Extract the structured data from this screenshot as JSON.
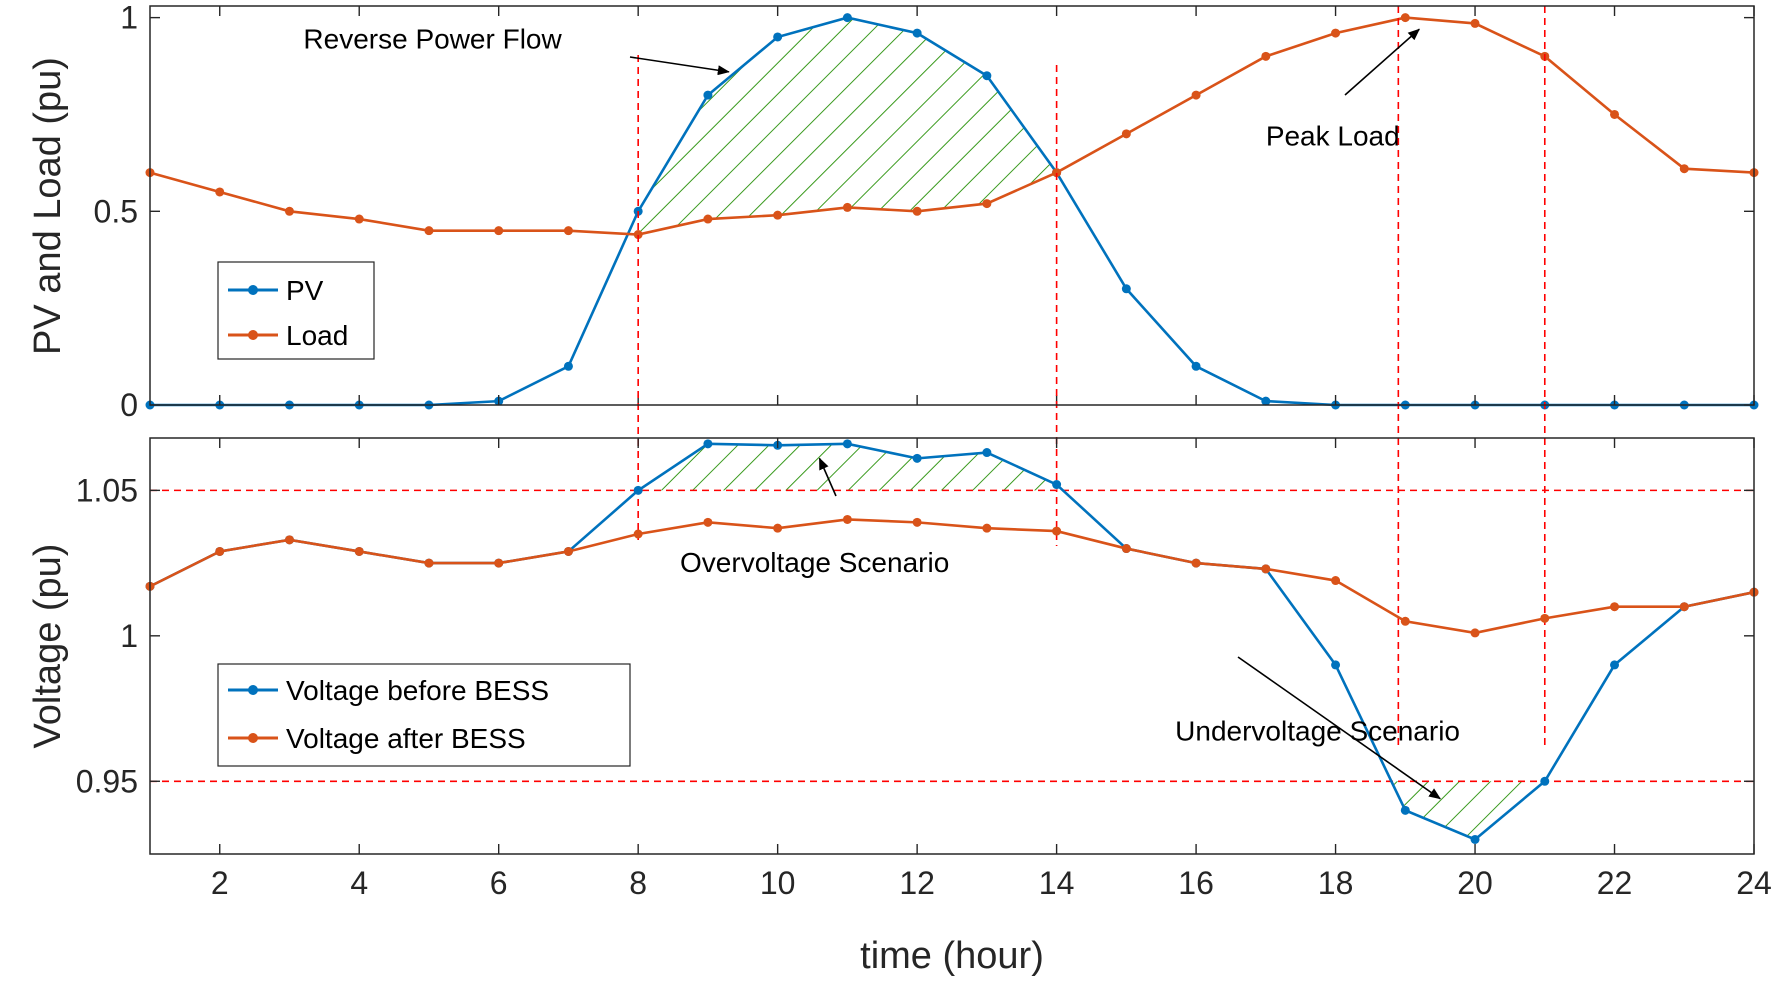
{
  "chart_data": [
    {
      "type": "line",
      "ylabel": "PV and Load (pu)",
      "xlim": [
        1,
        24
      ],
      "ylim": [
        0,
        1.03
      ],
      "yticks": [
        0,
        0.5,
        1
      ],
      "ytick_labels": [
        "0",
        "0.5",
        "1"
      ],
      "grid": false,
      "legend": "center-left",
      "x": [
        1,
        2,
        3,
        4,
        5,
        6,
        7,
        8,
        9,
        10,
        11,
        12,
        13,
        14,
        15,
        16,
        17,
        18,
        19,
        20,
        21,
        22,
        23,
        24
      ],
      "series": [
        {
          "name": "PV",
          "color": "#0072BD",
          "values": [
            0,
            0,
            0,
            0,
            0,
            0.01,
            0.1,
            0.5,
            0.8,
            0.95,
            1.0,
            0.96,
            0.85,
            0.6,
            0.3,
            0.1,
            0.01,
            0,
            0,
            0,
            0,
            0,
            0,
            0
          ]
        },
        {
          "name": "Load",
          "color": "#D95319",
          "values": [
            0.6,
            0.55,
            0.5,
            0.48,
            0.45,
            0.45,
            0.45,
            0.44,
            0.48,
            0.49,
            0.51,
            0.5,
            0.52,
            0.6,
            0.7,
            0.8,
            0.9,
            0.96,
            1.0,
            0.985,
            0.9,
            0.75,
            0.61,
            0.6
          ]
        }
      ],
      "vlines": [
        8,
        14,
        19,
        21
      ],
      "annotations": [
        {
          "text": "Reverse Power Flow",
          "x": 3.2,
          "y": 0.92,
          "arrow_to": [
            9.3,
            0.86
          ]
        },
        {
          "text": "Peak Load",
          "x": 17.0,
          "y": 0.67,
          "arrow_to": [
            19.2,
            0.97
          ]
        }
      ],
      "legend_labels": [
        "PV",
        "Load"
      ]
    },
    {
      "type": "line",
      "ylabel": "Voltage (pu)",
      "xlabel": "time (hour)",
      "xlim": [
        1,
        24
      ],
      "ylim": [
        0.925,
        1.068
      ],
      "xticks": [
        2,
        4,
        6,
        8,
        10,
        12,
        14,
        16,
        18,
        20,
        22,
        24
      ],
      "xtick_labels": [
        "2",
        "4",
        "6",
        "8",
        "10",
        "12",
        "14",
        "16",
        "18",
        "20",
        "22",
        "24"
      ],
      "yticks": [
        0.95,
        1,
        1.05
      ],
      "ytick_labels": [
        "0.95",
        "1",
        "1.05"
      ],
      "grid": false,
      "legend": "bottom-left",
      "x": [
        1,
        2,
        3,
        4,
        5,
        6,
        7,
        8,
        9,
        10,
        11,
        12,
        13,
        14,
        15,
        16,
        17,
        18,
        19,
        20,
        21,
        22,
        23,
        24
      ],
      "series": [
        {
          "name": "Voltage before BESS",
          "color": "#0072BD",
          "values": [
            1.017,
            1.029,
            1.033,
            1.029,
            1.025,
            1.025,
            1.029,
            1.05,
            1.066,
            1.0655,
            1.066,
            1.061,
            1.063,
            1.052,
            1.03,
            1.025,
            1.023,
            0.99,
            0.94,
            0.93,
            0.95,
            0.99,
            1.01,
            1.015
          ]
        },
        {
          "name": "Voltage after BESS",
          "color": "#D95319",
          "values": [
            1.017,
            1.029,
            1.033,
            1.029,
            1.025,
            1.025,
            1.029,
            1.035,
            1.039,
            1.037,
            1.04,
            1.039,
            1.037,
            1.036,
            1.03,
            1.025,
            1.023,
            1.019,
            1.005,
            1.001,
            1.006,
            1.01,
            1.01,
            1.015
          ]
        }
      ],
      "hlines": [
        0.95,
        1.05
      ],
      "annotations": [
        {
          "text": "Overvoltage Scenario",
          "x": 8.6,
          "y": 1.022,
          "arrow_to": [
            10.6,
            1.061
          ]
        },
        {
          "text": "Undervoltage Scenario",
          "x": 15.7,
          "y": 0.964,
          "arrow_to": [
            19.5,
            0.944
          ]
        }
      ],
      "legend_labels": [
        "Voltage before BESS",
        "Voltage after BESS"
      ]
    }
  ]
}
